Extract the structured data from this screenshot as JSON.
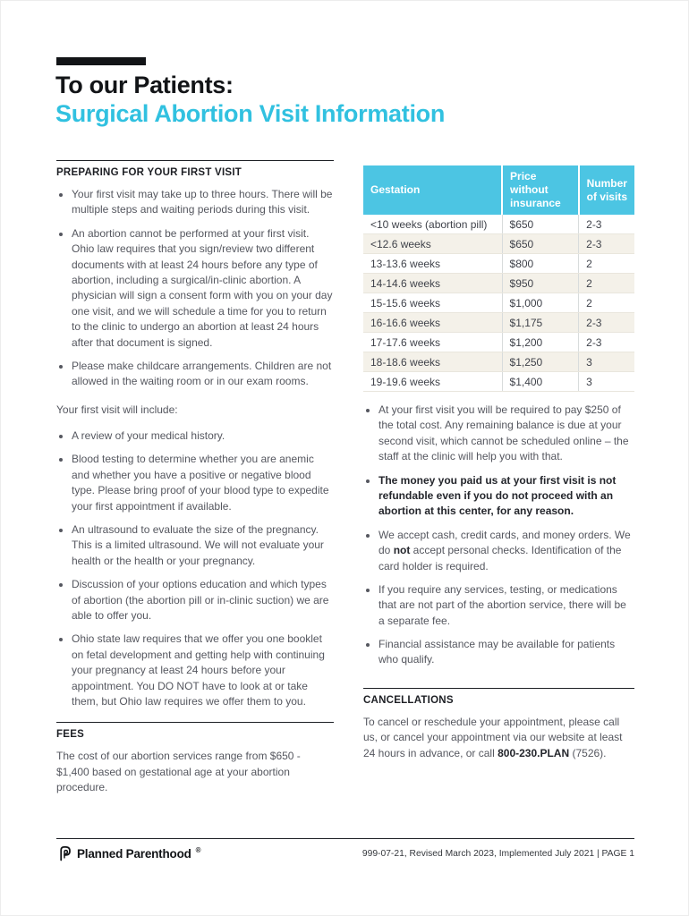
{
  "page": {
    "title_line1": "To our Patients:",
    "title_line2": "Surgical Abortion Visit Information",
    "accent_color": "#31C1E0"
  },
  "left": {
    "preparing": {
      "heading": "PREPARING FOR YOUR FIRST VISIT",
      "bullets": [
        {
          "segments": [
            {
              "t": "Your first visit may take up to three hours. There will be multiple steps and waiting periods during this visit."
            }
          ]
        },
        {
          "segments": [
            {
              "t": "An abortion cannot be performed at your first visit. Ohio law requires that you sign/review two different documents with at least 24 hours before any type of abortion, including a surgical/in-clinic abortion. A physician will sign a consent form with you on your day one visit, and we will schedule a time for you to return to the clinic to undergo an abortion at least 24 hours after that document is signed."
            }
          ]
        },
        {
          "segments": [
            {
              "t": "Please make childcare arrangements. Children are not allowed in the waiting room or in our exam rooms."
            }
          ]
        }
      ]
    },
    "include": {
      "intro": "Your first visit will include:",
      "bullets": [
        {
          "segments": [
            {
              "t": "A review of your medical history."
            }
          ]
        },
        {
          "segments": [
            {
              "t": "Blood testing to determine whether you are anemic and whether you have a positive or negative blood type. Please bring proof of your blood type to expedite your first appointment if available."
            }
          ]
        },
        {
          "segments": [
            {
              "t": "An ultrasound to evaluate the size of the pregnancy. This is a limited ultrasound. We will not evaluate your health or the health or your pregnancy."
            }
          ]
        },
        {
          "segments": [
            {
              "t": "Discussion of your options education and which types of abortion (the abortion pill or in-clinic suction) we are able to offer you."
            }
          ]
        },
        {
          "segments": [
            {
              "t": "Ohio state law requires that we offer you one booklet on fetal development and getting help with continuing your pregnancy at least 24 hours before your appointment. You DO NOT have to look at or take them, but Ohio law requires we offer them to you."
            }
          ]
        }
      ]
    },
    "fees": {
      "heading": "FEES",
      "body": "The cost of our abortion services range from $650 - $1,400 based on gestational age at your abortion procedure."
    }
  },
  "right": {
    "table": {
      "headers": [
        "Gestation",
        "Price without insurance",
        "Number of visits"
      ],
      "rows": [
        [
          "<10 weeks (abortion pill)",
          "$650",
          "2-3"
        ],
        [
          "<12.6 weeks",
          "$650",
          "2-3"
        ],
        [
          "13-13.6 weeks",
          "$800",
          "2"
        ],
        [
          "14-14.6 weeks",
          "$950",
          "2"
        ],
        [
          "15-15.6 weeks",
          "$1,000",
          "2"
        ],
        [
          "16-16.6 weeks",
          "$1,175",
          "2-3"
        ],
        [
          "17-17.6 weeks",
          "$1,200",
          "2-3"
        ],
        [
          "18-18.6 weeks",
          "$1,250",
          "3"
        ],
        [
          "19-19.6 weeks",
          "$1,400",
          "3"
        ]
      ],
      "header_bg": "#4CC5E3",
      "alt_row_bg": "#F4F1E9"
    },
    "bullets": [
      {
        "segments": [
          {
            "t": "At your first visit you will be required to pay $250 of the total cost. Any remaining balance is due at your second visit, which cannot be scheduled online – the staff at the clinic will help you with that."
          }
        ]
      },
      {
        "segments": [
          {
            "t": "The money you paid us at your first visit is not refundable even if you do not proceed with an abortion at this center, for any reason.",
            "b": true
          }
        ]
      },
      {
        "segments": [
          {
            "t": "We accept cash, credit cards, and money orders. We do "
          },
          {
            "t": "not",
            "b": true
          },
          {
            "t": " accept personal checks. Identification of the card holder is required."
          }
        ]
      },
      {
        "segments": [
          {
            "t": "If you require any services, testing, or medications that are not part of the abortion service, there will be a separate fee."
          }
        ]
      },
      {
        "segments": [
          {
            "t": "Financial assistance may be available for patients who qualify."
          }
        ]
      }
    ],
    "cancellations": {
      "heading": "CANCELLATIONS",
      "body_segments": [
        {
          "t": "To cancel or reschedule your appointment, please call us, or cancel your appointment via our website at least 24 hours in advance, or call "
        },
        {
          "t": "800-230.PLAN",
          "b": true
        },
        {
          "t": " (7526)."
        }
      ]
    }
  },
  "footer": {
    "brand": "Planned Parenthood",
    "registered_mark": "®",
    "docinfo": "999-07-21, Revised March 2023, Implemented July 2021  |  PAGE 1"
  }
}
